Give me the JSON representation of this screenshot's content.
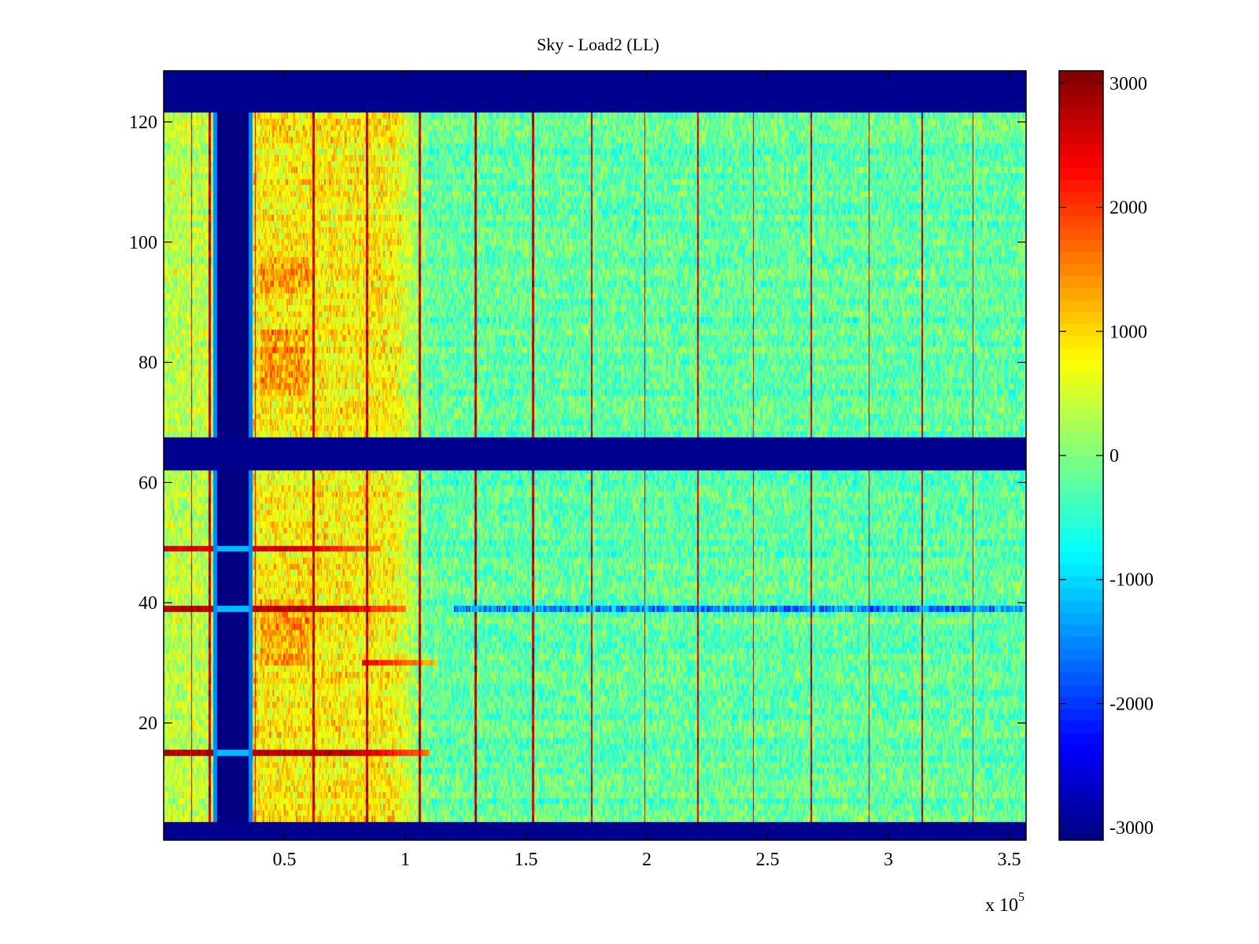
{
  "chart_data": {
    "type": "heatmap",
    "title": "Sky - Load2 (LL)",
    "xlabel": "",
    "ylabel": "",
    "x_multiplier_label": "x 10",
    "x_multiplier_exponent": "5",
    "xlim": [
      0,
      3.57
    ],
    "ylim": [
      0.5,
      128.5
    ],
    "xticks": [
      0.5,
      1,
      1.5,
      2,
      2.5,
      3,
      3.5
    ],
    "xtick_labels": [
      "0.5",
      "1",
      "1.5",
      "2",
      "2.5",
      "3",
      "3.5"
    ],
    "yticks": [
      20,
      40,
      60,
      80,
      100,
      120
    ],
    "ytick_labels": [
      "20",
      "40",
      "60",
      "80",
      "100",
      "120"
    ],
    "colorbar": {
      "colormap": "jet",
      "clim": [
        -3100,
        3100
      ],
      "ticks": [
        3000,
        2000,
        1000,
        0,
        -1000,
        -2000,
        -3000
      ],
      "tick_labels": [
        "3000",
        "2000",
        "1000",
        "0",
        "-1000",
        "-2000",
        "-3000"
      ]
    },
    "masked_rows": [
      [
        0.5,
        3.5
      ],
      [
        62,
        67.5
      ],
      [
        121.5,
        128.5
      ]
    ],
    "masked_x_band": [
      0.22,
      0.35
    ],
    "hot_columns": [
      0.115,
      0.19,
      0.38,
      0.62,
      0.84,
      1.06,
      1.29,
      1.53,
      1.77,
      1.99,
      2.21,
      2.44,
      2.68,
      2.92,
      3.14,
      3.35
    ],
    "warm_region": {
      "x": [
        0.35,
        1.1
      ],
      "level": 1300
    },
    "background_level": -200,
    "hot_rows": [
      {
        "y": 15,
        "x": [
          0,
          1.1
        ],
        "level": 3000
      },
      {
        "y": 39,
        "x": [
          0,
          1.0
        ],
        "level": 3000
      },
      {
        "y": 49,
        "x": [
          0,
          0.9
        ],
        "level": 2800
      },
      {
        "y": 30,
        "x": [
          0.82,
          1.13
        ],
        "level": 2600
      }
    ],
    "cold_rows": [
      {
        "y": 39,
        "x": [
          1.2,
          3.6
        ],
        "level": -2200
      }
    ],
    "colors": {
      "mask": "#00008f",
      "axis": "#000000",
      "background": "#ffffff"
    }
  }
}
